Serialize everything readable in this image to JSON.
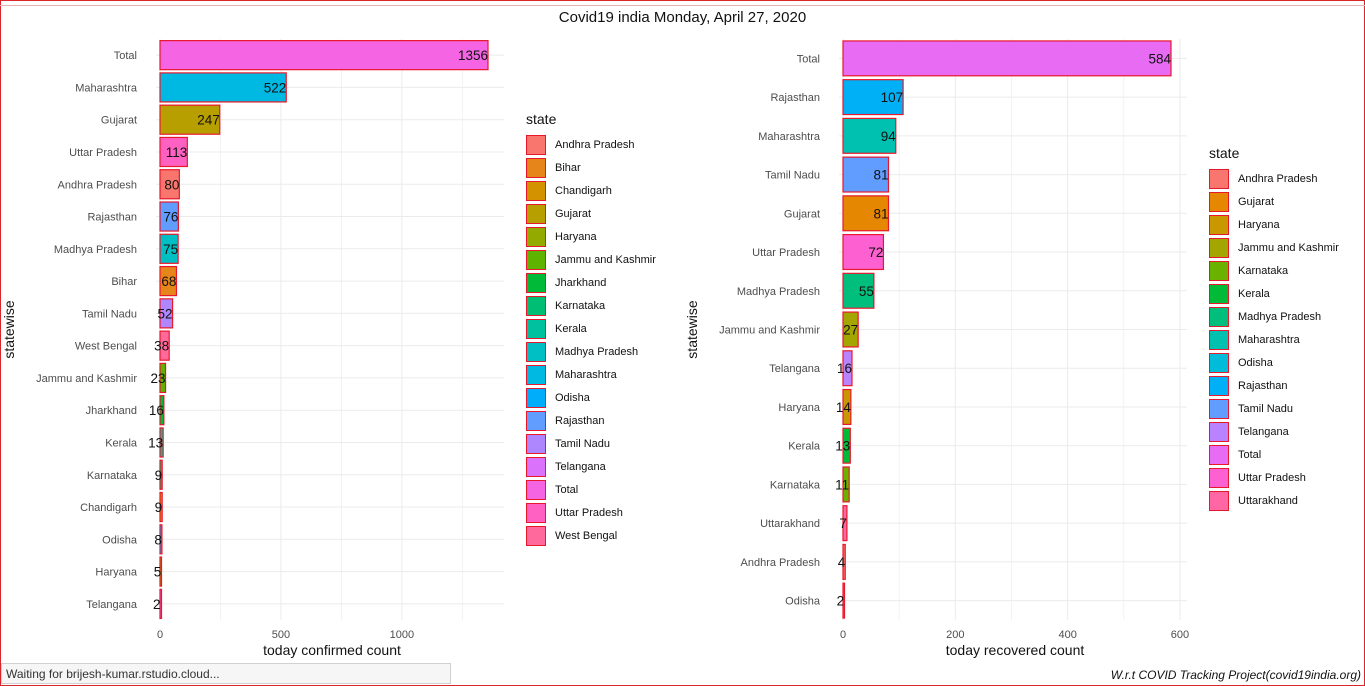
{
  "title": "Covid19 india Monday, April 27, 2020",
  "status_text": "Waiting for brijesh-kumar.rstudio.cloud...",
  "caption": "W.r.t COVID Tracking Project(covid19india.org)",
  "bar_outline_color": "#e8182c",
  "chart_data": [
    {
      "type": "bar",
      "orientation": "horizontal",
      "xlabel": "today confirmed count",
      "ylabel": "statewise",
      "xlim": [
        0,
        1356
      ],
      "xticks": [
        0,
        500,
        1000
      ],
      "grid": true,
      "legend_position": "right",
      "legend_title": "state",
      "categories": [
        "Total",
        "Maharashtra",
        "Gujarat",
        "Uttar Pradesh",
        "Andhra Pradesh",
        "Rajasthan",
        "Madhya Pradesh",
        "Bihar",
        "Tamil Nadu",
        "West Bengal",
        "Jammu and Kashmir",
        "Jharkhand",
        "Kerala",
        "Karnataka",
        "Chandigarh",
        "Odisha",
        "Haryana",
        "Telangana"
      ],
      "values": [
        1356,
        522,
        247,
        113,
        80,
        76,
        75,
        68,
        52,
        38,
        23,
        16,
        13,
        9,
        9,
        8,
        5,
        2
      ],
      "legend_entries": [
        {
          "name": "Andhra Pradesh",
          "color": "#f8766d"
        },
        {
          "name": "Bihar",
          "color": "#e6861a"
        },
        {
          "name": "Chandigarh",
          "color": "#d39200"
        },
        {
          "name": "Gujarat",
          "color": "#b79f00"
        },
        {
          "name": "Haryana",
          "color": "#93aa00"
        },
        {
          "name": "Jammu and Kashmir",
          "color": "#5eb300"
        },
        {
          "name": "Jharkhand",
          "color": "#00ba38"
        },
        {
          "name": "Karnataka",
          "color": "#00bf74"
        },
        {
          "name": "Kerala",
          "color": "#00c19f"
        },
        {
          "name": "Madhya Pradesh",
          "color": "#00bfc4"
        },
        {
          "name": "Maharashtra",
          "color": "#00b9e3"
        },
        {
          "name": "Odisha",
          "color": "#00adfa"
        },
        {
          "name": "Rajasthan",
          "color": "#619cff"
        },
        {
          "name": "Tamil Nadu",
          "color": "#ae87ff"
        },
        {
          "name": "Telangana",
          "color": "#db72fb"
        },
        {
          "name": "Total",
          "color": "#f564e3"
        },
        {
          "name": "Uttar Pradesh",
          "color": "#ff61c3"
        },
        {
          "name": "West Bengal",
          "color": "#ff699c"
        }
      ]
    },
    {
      "type": "bar",
      "orientation": "horizontal",
      "xlabel": "today recovered count",
      "ylabel": "statewise",
      "xlim": [
        0,
        584
      ],
      "xticks": [
        0,
        200,
        400,
        600
      ],
      "grid": true,
      "legend_position": "right",
      "legend_title": "state",
      "categories": [
        "Total",
        "Rajasthan",
        "Maharashtra",
        "Tamil Nadu",
        "Gujarat",
        "Uttar Pradesh",
        "Madhya Pradesh",
        "Jammu and Kashmir",
        "Telangana",
        "Haryana",
        "Kerala",
        "Karnataka",
        "Uttarakhand",
        "Andhra Pradesh",
        "Odisha"
      ],
      "values": [
        584,
        107,
        94,
        81,
        81,
        72,
        55,
        27,
        16,
        14,
        13,
        11,
        7,
        4,
        2
      ],
      "legend_entries": [
        {
          "name": "Andhra Pradesh",
          "color": "#f8766d"
        },
        {
          "name": "Gujarat",
          "color": "#e58700"
        },
        {
          "name": "Haryana",
          "color": "#c99800"
        },
        {
          "name": "Jammu and Kashmir",
          "color": "#a3a500"
        },
        {
          "name": "Karnataka",
          "color": "#6bb100"
        },
        {
          "name": "Kerala",
          "color": "#00ba38"
        },
        {
          "name": "Madhya Pradesh",
          "color": "#00bf7d"
        },
        {
          "name": "Maharashtra",
          "color": "#00c0af"
        },
        {
          "name": "Odisha",
          "color": "#00bcd8"
        },
        {
          "name": "Rajasthan",
          "color": "#00b0f6"
        },
        {
          "name": "Tamil Nadu",
          "color": "#619cff"
        },
        {
          "name": "Telangana",
          "color": "#b983ff"
        },
        {
          "name": "Total",
          "color": "#e76bf3"
        },
        {
          "name": "Uttar Pradesh",
          "color": "#fd61d1"
        },
        {
          "name": "Uttarakhand",
          "color": "#ff67a4"
        }
      ]
    }
  ]
}
